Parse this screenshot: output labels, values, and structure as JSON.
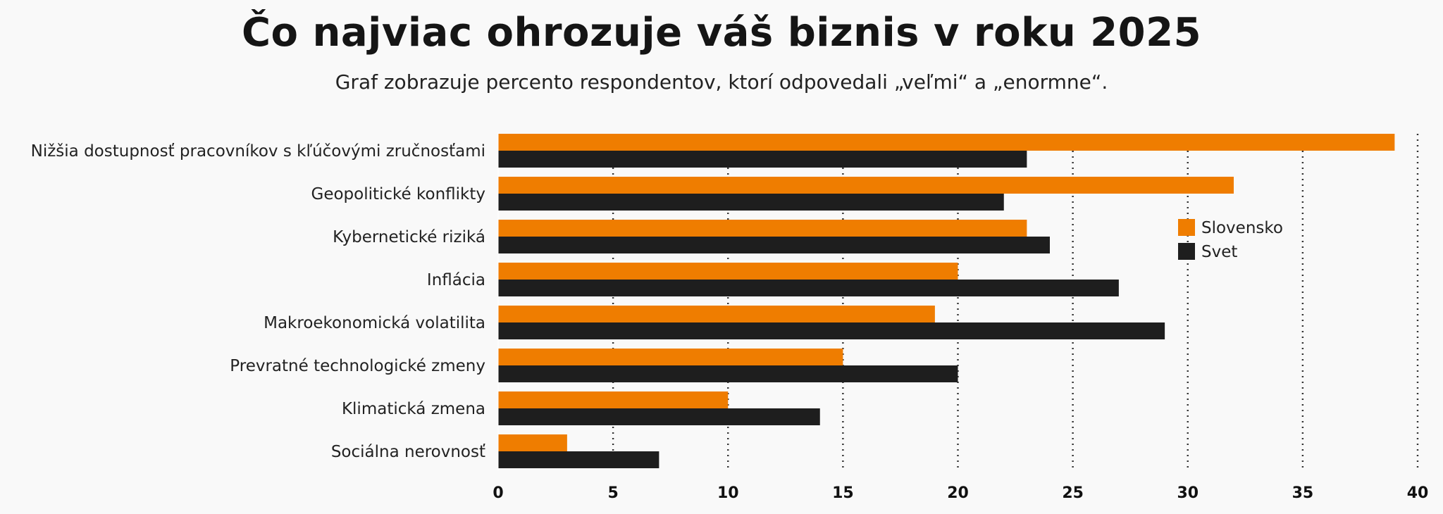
{
  "chart_data": {
    "type": "bar",
    "orientation": "horizontal",
    "title": "Čo najviac ohrozuje váš biznis v roku 2025",
    "subtitle": "Graf zobrazuje percento respondentov, ktorí odpovedali „veľmi“ a „enormne“.",
    "categories": [
      "Nižšia dostupnosť pracovníkov s kľúčovými zručnosťami",
      "Geopolitické konflikty",
      "Kybernetické riziká",
      "Inflácia",
      "Makroekonomická volatilita",
      "Prevratné technologické zmeny",
      "Klimatická zmena",
      "Sociálna nerovnosť"
    ],
    "series": [
      {
        "name": "Slovensko",
        "color": "#ef7d00",
        "values": [
          39,
          32,
          23,
          20,
          19,
          15,
          10,
          3
        ]
      },
      {
        "name": "Svet",
        "color": "#1e1e1e",
        "values": [
          23,
          22,
          24,
          27,
          29,
          20,
          14,
          7
        ]
      }
    ],
    "xlim": [
      0,
      40
    ],
    "xticks": [
      "0",
      "5",
      "10",
      "15",
      "20",
      "25",
      "30",
      "35",
      "40"
    ],
    "grid": "vertical dotted",
    "legend_position": "right"
  }
}
